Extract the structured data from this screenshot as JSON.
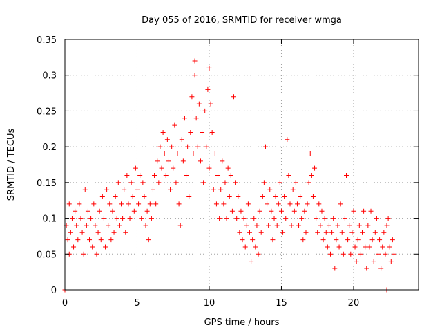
{
  "colors": {
    "series": "#ff0000",
    "axis": "#000000",
    "grid": "#a0a0a0",
    "background": "#ffffff"
  },
  "chart_data": {
    "type": "scatter",
    "title": "Day 055 of 2016, SRMTID for receiver wmga",
    "xlabel": "GPS time / hours",
    "ylabel": "SRMTID / TECUs",
    "xlim": [
      0,
      24.5
    ],
    "ylim": [
      0,
      0.35
    ],
    "grid": true,
    "marker": "plus",
    "x_ticks": [
      0,
      5,
      10,
      15,
      20
    ],
    "x_tick_labels": [
      "0",
      "5",
      "10",
      "15",
      "20"
    ],
    "y_ticks": [
      0,
      0.05,
      0.1,
      0.15,
      0.2,
      0.25,
      0.3,
      0.35
    ],
    "y_tick_labels": [
      "0",
      "0.05",
      "0.1",
      "0.15",
      "0.2",
      "0.25",
      "0.3",
      "0.35"
    ],
    "series": [
      {
        "name": "SRMTID",
        "points": [
          [
            0.0,
            0.0
          ],
          [
            22.3,
            0.0
          ],
          [
            0.1,
            0.09
          ],
          [
            0.2,
            0.07
          ],
          [
            0.3,
            0.05
          ],
          [
            0.3,
            0.12
          ],
          [
            0.4,
            0.08
          ],
          [
            0.5,
            0.1
          ],
          [
            0.6,
            0.06
          ],
          [
            0.7,
            0.11
          ],
          [
            0.8,
            0.09
          ],
          [
            0.9,
            0.07
          ],
          [
            1.0,
            0.12
          ],
          [
            1.1,
            0.1
          ],
          [
            1.2,
            0.08
          ],
          [
            1.3,
            0.05
          ],
          [
            1.4,
            0.14
          ],
          [
            1.5,
            0.09
          ],
          [
            1.6,
            0.11
          ],
          [
            1.7,
            0.07
          ],
          [
            1.8,
            0.1
          ],
          [
            1.9,
            0.06
          ],
          [
            2.0,
            0.12
          ],
          [
            2.1,
            0.09
          ],
          [
            2.2,
            0.05
          ],
          [
            2.3,
            0.08
          ],
          [
            2.4,
            0.11
          ],
          [
            2.5,
            0.07
          ],
          [
            2.6,
            0.13
          ],
          [
            2.7,
            0.1
          ],
          [
            2.8,
            0.06
          ],
          [
            2.9,
            0.14
          ],
          [
            3.0,
            0.09
          ],
          [
            3.1,
            0.12
          ],
          [
            3.2,
            0.07
          ],
          [
            3.3,
            0.11
          ],
          [
            3.4,
            0.08
          ],
          [
            3.5,
            0.13
          ],
          [
            3.6,
            0.1
          ],
          [
            3.7,
            0.15
          ],
          [
            3.8,
            0.09
          ],
          [
            3.9,
            0.12
          ],
          [
            4.0,
            0.1
          ],
          [
            4.1,
            0.14
          ],
          [
            4.2,
            0.08
          ],
          [
            4.3,
            0.16
          ],
          [
            4.4,
            0.12
          ],
          [
            4.5,
            0.1
          ],
          [
            4.6,
            0.15
          ],
          [
            4.7,
            0.13
          ],
          [
            4.8,
            0.11
          ],
          [
            4.9,
            0.17
          ],
          [
            5.0,
            0.14
          ],
          [
            5.1,
            0.12
          ],
          [
            5.2,
            0.16
          ],
          [
            5.3,
            0.1
          ],
          [
            5.4,
            0.15
          ],
          [
            5.5,
            0.13
          ],
          [
            5.6,
            0.09
          ],
          [
            5.7,
            0.11
          ],
          [
            5.8,
            0.07
          ],
          [
            5.9,
            0.12
          ],
          [
            6.0,
            0.1
          ],
          [
            6.1,
            0.14
          ],
          [
            6.2,
            0.16
          ],
          [
            6.3,
            0.12
          ],
          [
            6.4,
            0.18
          ],
          [
            6.5,
            0.15
          ],
          [
            6.6,
            0.2
          ],
          [
            6.7,
            0.17
          ],
          [
            6.8,
            0.22
          ],
          [
            6.9,
            0.19
          ],
          [
            7.0,
            0.16
          ],
          [
            7.1,
            0.21
          ],
          [
            7.2,
            0.18
          ],
          [
            7.3,
            0.14
          ],
          [
            7.4,
            0.2
          ],
          [
            7.5,
            0.17
          ],
          [
            7.6,
            0.23
          ],
          [
            7.7,
            0.15
          ],
          [
            7.8,
            0.19
          ],
          [
            7.9,
            0.12
          ],
          [
            8.0,
            0.09
          ],
          [
            8.1,
            0.21
          ],
          [
            8.2,
            0.18
          ],
          [
            8.3,
            0.24
          ],
          [
            8.4,
            0.16
          ],
          [
            8.5,
            0.2
          ],
          [
            8.6,
            0.13
          ],
          [
            8.7,
            0.22
          ],
          [
            8.8,
            0.27
          ],
          [
            8.9,
            0.19
          ],
          [
            9.0,
            0.3
          ],
          [
            9.0,
            0.32
          ],
          [
            9.1,
            0.24
          ],
          [
            9.2,
            0.2
          ],
          [
            9.3,
            0.26
          ],
          [
            9.4,
            0.18
          ],
          [
            9.5,
            0.22
          ],
          [
            9.6,
            0.15
          ],
          [
            9.7,
            0.25
          ],
          [
            9.8,
            0.2
          ],
          [
            9.9,
            0.28
          ],
          [
            10.0,
            0.31
          ],
          [
            10.0,
            0.17
          ],
          [
            10.1,
            0.26
          ],
          [
            10.2,
            0.22
          ],
          [
            10.3,
            0.14
          ],
          [
            10.4,
            0.19
          ],
          [
            10.5,
            0.12
          ],
          [
            10.6,
            0.16
          ],
          [
            10.7,
            0.1
          ],
          [
            10.8,
            0.14
          ],
          [
            10.9,
            0.18
          ],
          [
            11.0,
            0.12
          ],
          [
            11.1,
            0.15
          ],
          [
            11.2,
            0.1
          ],
          [
            11.3,
            0.17
          ],
          [
            11.4,
            0.13
          ],
          [
            11.5,
            0.16
          ],
          [
            11.6,
            0.11
          ],
          [
            11.7,
            0.27
          ],
          [
            11.8,
            0.15
          ],
          [
            11.9,
            0.1
          ],
          [
            12.0,
            0.13
          ],
          [
            12.1,
            0.08
          ],
          [
            12.2,
            0.11
          ],
          [
            12.3,
            0.07
          ],
          [
            12.4,
            0.1
          ],
          [
            12.5,
            0.06
          ],
          [
            12.6,
            0.09
          ],
          [
            12.7,
            0.12
          ],
          [
            12.8,
            0.08
          ],
          [
            12.9,
            0.04
          ],
          [
            13.0,
            0.07
          ],
          [
            13.1,
            0.1
          ],
          [
            13.2,
            0.06
          ],
          [
            13.3,
            0.09
          ],
          [
            13.4,
            0.05
          ],
          [
            13.5,
            0.11
          ],
          [
            13.6,
            0.08
          ],
          [
            13.7,
            0.13
          ],
          [
            13.8,
            0.15
          ],
          [
            13.9,
            0.2
          ],
          [
            14.0,
            0.12
          ],
          [
            14.1,
            0.09
          ],
          [
            14.2,
            0.14
          ],
          [
            14.3,
            0.11
          ],
          [
            14.4,
            0.07
          ],
          [
            14.5,
            0.1
          ],
          [
            14.6,
            0.13
          ],
          [
            14.7,
            0.09
          ],
          [
            14.8,
            0.12
          ],
          [
            14.9,
            0.15
          ],
          [
            15.0,
            0.11
          ],
          [
            15.1,
            0.08
          ],
          [
            15.2,
            0.13
          ],
          [
            15.3,
            0.1
          ],
          [
            15.4,
            0.21
          ],
          [
            15.5,
            0.16
          ],
          [
            15.6,
            0.12
          ],
          [
            15.7,
            0.09
          ],
          [
            15.8,
            0.14
          ],
          [
            15.9,
            0.11
          ],
          [
            16.0,
            0.15
          ],
          [
            16.1,
            0.12
          ],
          [
            16.2,
            0.09
          ],
          [
            16.3,
            0.13
          ],
          [
            16.4,
            0.1
          ],
          [
            16.5,
            0.07
          ],
          [
            16.6,
            0.11
          ],
          [
            16.7,
            0.08
          ],
          [
            16.8,
            0.12
          ],
          [
            16.9,
            0.15
          ],
          [
            17.0,
            0.19
          ],
          [
            17.1,
            0.16
          ],
          [
            17.2,
            0.13
          ],
          [
            17.3,
            0.17
          ],
          [
            17.4,
            0.1
          ],
          [
            17.5,
            0.08
          ],
          [
            17.6,
            0.12
          ],
          [
            17.7,
            0.09
          ],
          [
            17.8,
            0.11
          ],
          [
            17.9,
            0.07
          ],
          [
            18.0,
            0.1
          ],
          [
            18.1,
            0.08
          ],
          [
            18.2,
            0.06
          ],
          [
            18.3,
            0.09
          ],
          [
            18.4,
            0.05
          ],
          [
            18.5,
            0.08
          ],
          [
            18.6,
            0.1
          ],
          [
            18.7,
            0.03
          ],
          [
            18.8,
            0.07
          ],
          [
            18.9,
            0.09
          ],
          [
            19.0,
            0.06
          ],
          [
            19.1,
            0.12
          ],
          [
            19.2,
            0.08
          ],
          [
            19.3,
            0.05
          ],
          [
            19.4,
            0.1
          ],
          [
            19.5,
            0.16
          ],
          [
            19.6,
            0.07
          ],
          [
            19.7,
            0.09
          ],
          [
            19.8,
            0.05
          ],
          [
            19.9,
            0.08
          ],
          [
            20.0,
            0.11
          ],
          [
            20.1,
            0.06
          ],
          [
            20.2,
            0.04
          ],
          [
            20.3,
            0.07
          ],
          [
            20.4,
            0.09
          ],
          [
            20.5,
            0.05
          ],
          [
            20.6,
            0.08
          ],
          [
            20.7,
            0.11
          ],
          [
            20.8,
            0.06
          ],
          [
            20.9,
            0.03
          ],
          [
            21.0,
            0.09
          ],
          [
            21.1,
            0.06
          ],
          [
            21.2,
            0.11
          ],
          [
            21.3,
            0.07
          ],
          [
            21.4,
            0.04
          ],
          [
            21.5,
            0.08
          ],
          [
            21.6,
            0.1
          ],
          [
            21.7,
            0.05
          ],
          [
            21.8,
            0.07
          ],
          [
            21.9,
            0.03
          ],
          [
            22.0,
            0.06
          ],
          [
            22.1,
            0.08
          ],
          [
            22.2,
            0.05
          ],
          [
            22.3,
            0.09
          ],
          [
            22.4,
            0.1
          ],
          [
            22.5,
            0.06
          ],
          [
            22.6,
            0.04
          ],
          [
            22.7,
            0.07
          ],
          [
            22.8,
            0.05
          ]
        ]
      }
    ]
  }
}
